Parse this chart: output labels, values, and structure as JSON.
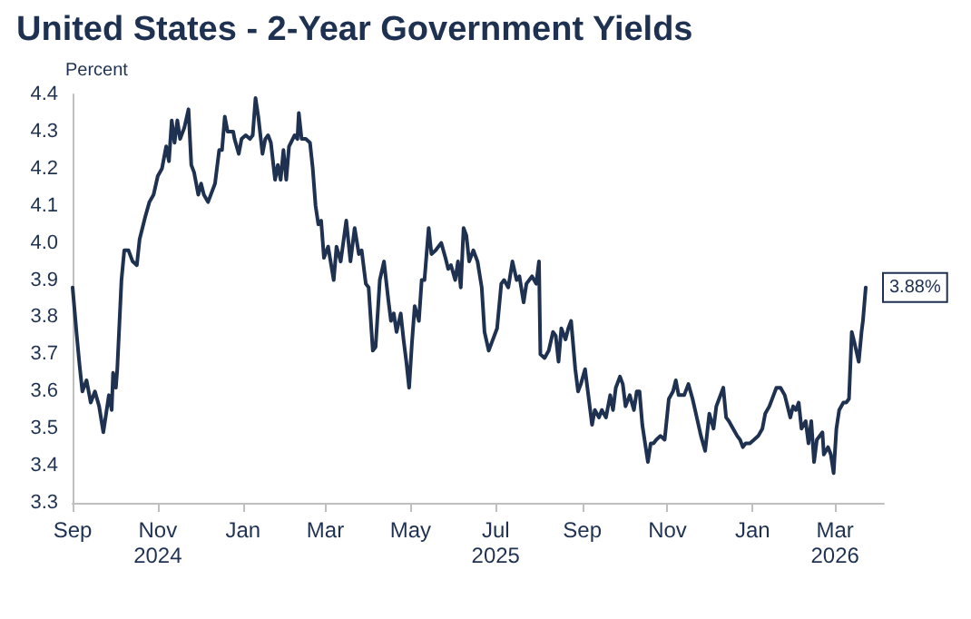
{
  "chart_data": {
    "type": "line",
    "title": "United States - 2-Year Government Yields",
    "ylabel": "Percent",
    "xlim": [
      "2024-09-01",
      "2026-04-05"
    ],
    "ylim": [
      3.3,
      4.4
    ],
    "xticks": [
      {
        "value": "2024-09-01",
        "label": "Sep"
      },
      {
        "value": "2024-11-01",
        "label": "Nov\n2024"
      },
      {
        "value": "2025-01-01",
        "label": "Jan"
      },
      {
        "value": "2025-03-01",
        "label": "Mar"
      },
      {
        "value": "2025-05-01",
        "label": "May"
      },
      {
        "value": "2025-07-01",
        "label": "Jul\n2025"
      },
      {
        "value": "2025-09-01",
        "label": "Sep"
      },
      {
        "value": "2025-11-01",
        "label": "Nov"
      },
      {
        "value": "2026-01-01",
        "label": "Jan"
      },
      {
        "value": "2026-03-01",
        "label": "Mar\n2026"
      }
    ],
    "yticks": [
      3.3,
      3.4,
      3.5,
      3.6,
      3.7,
      3.8,
      3.9,
      {
        "value": 4,
        "label": "4.0"
      },
      4.1,
      4.2,
      4.3,
      4.4
    ],
    "grid": false,
    "marker": "none",
    "line_style": "solid",
    "annotations": [
      {
        "text": "3.88%",
        "x": "2026-03-23",
        "y": 3.88
      }
    ],
    "series": [
      {
        "color": "#1f3150",
        "x": [
          "2024-09-01",
          "2024-09-04",
          "2024-09-06",
          "2024-09-08",
          "2024-09-11",
          "2024-09-14",
          "2024-09-17",
          "2024-09-20",
          "2024-09-23",
          "2024-09-27",
          "2024-09-29",
          "2024-09-30",
          "2024-10-02",
          "2024-10-03",
          "2024-10-06",
          "2024-10-08",
          "2024-10-11",
          "2024-10-14",
          "2024-10-17",
          "2024-10-19",
          "2024-10-23",
          "2024-10-26",
          "2024-10-29",
          "2024-11-01",
          "2024-11-04",
          "2024-11-07",
          "2024-11-09",
          "2024-11-11",
          "2024-11-13",
          "2024-11-15",
          "2024-11-17",
          "2024-11-20",
          "2024-11-23",
          "2024-11-25",
          "2024-11-27",
          "2024-11-30",
          "2024-12-02",
          "2024-12-04",
          "2024-12-07",
          "2024-12-10",
          "2024-12-12",
          "2024-12-15",
          "2024-12-17",
          "2024-12-19",
          "2024-12-21",
          "2024-12-25",
          "2024-12-26",
          "2024-12-29",
          "2024-12-31",
          "2025-01-03",
          "2025-01-06",
          "2025-01-08",
          "2025-01-10",
          "2025-01-12",
          "2025-01-15",
          "2025-01-17",
          "2025-01-19",
          "2025-01-21",
          "2025-01-24",
          "2025-01-26",
          "2025-01-28",
          "2025-01-30",
          "2025-02-01",
          "2025-02-03",
          "2025-02-07",
          "2025-02-09",
          "2025-02-10",
          "2025-02-12",
          "2025-02-15",
          "2025-02-18",
          "2025-02-20",
          "2025-02-22",
          "2025-02-24",
          "2025-02-26",
          "2025-02-28",
          "2025-03-03",
          "2025-03-07",
          "2025-03-09",
          "2025-03-12",
          "2025-03-16",
          "2025-03-19",
          "2025-03-22",
          "2025-03-25",
          "2025-03-27",
          "2025-03-30",
          "2025-04-01",
          "2025-04-04",
          "2025-04-06",
          "2025-04-09",
          "2025-04-12",
          "2025-04-15",
          "2025-04-17",
          "2025-04-19",
          "2025-04-21",
          "2025-04-24",
          "2025-04-26",
          "2025-04-28",
          "2025-04-30",
          "2025-05-02",
          "2025-05-04",
          "2025-05-07",
          "2025-05-09",
          "2025-05-11",
          "2025-05-14",
          "2025-05-16",
          "2025-05-19",
          "2025-05-23",
          "2025-05-26",
          "2025-05-28",
          "2025-05-30",
          "2025-06-02",
          "2025-06-04",
          "2025-06-06",
          "2025-06-08",
          "2025-06-10",
          "2025-06-12",
          "2025-06-15",
          "2025-06-18",
          "2025-06-21",
          "2025-06-23",
          "2025-06-26",
          "2025-06-28",
          "2025-07-02",
          "2025-07-05",
          "2025-07-07",
          "2025-07-10",
          "2025-07-13",
          "2025-07-16",
          "2025-07-18",
          "2025-07-21",
          "2025-07-23",
          "2025-07-27",
          "2025-07-30",
          "2025-08-01",
          "2025-08-02",
          "2025-08-05",
          "2025-08-08",
          "2025-08-11",
          "2025-08-13",
          "2025-08-15",
          "2025-08-17",
          "2025-08-20",
          "2025-08-22",
          "2025-08-24",
          "2025-08-27",
          "2025-08-29",
          "2025-08-31",
          "2025-09-03",
          "2025-09-05",
          "2025-09-08",
          "2025-09-10",
          "2025-09-13",
          "2025-09-15",
          "2025-09-18",
          "2025-09-21",
          "2025-09-23",
          "2025-09-25",
          "2025-09-28",
          "2025-09-30",
          "2025-10-02",
          "2025-10-05",
          "2025-10-08",
          "2025-10-10",
          "2025-10-12",
          "2025-10-14",
          "2025-10-18",
          "2025-10-20",
          "2025-10-22",
          "2025-10-24",
          "2025-10-27",
          "2025-10-30",
          "2025-11-02",
          "2025-11-05",
          "2025-11-07",
          "2025-11-09",
          "2025-11-13",
          "2025-11-16",
          "2025-11-19",
          "2025-11-22",
          "2025-11-25",
          "2025-11-28",
          "2025-12-01",
          "2025-12-04",
          "2025-12-06",
          "2025-12-08",
          "2025-12-11",
          "2025-12-13",
          "2025-12-15",
          "2025-12-18",
          "2025-12-21",
          "2025-12-23",
          "2025-12-25",
          "2025-12-27",
          "2025-12-30",
          "2026-01-02",
          "2026-01-05",
          "2026-01-08",
          "2026-01-10",
          "2026-01-13",
          "2026-01-16",
          "2026-01-18",
          "2026-01-21",
          "2026-01-24",
          "2026-01-26",
          "2026-01-28",
          "2026-01-30",
          "2026-02-01",
          "2026-02-03",
          "2026-02-05",
          "2026-02-08",
          "2026-02-10",
          "2026-02-12",
          "2026-02-14",
          "2026-02-16",
          "2026-02-20",
          "2026-02-21",
          "2026-02-24",
          "2026-02-26",
          "2026-02-28",
          "2026-03-02",
          "2026-03-04",
          "2026-03-07",
          "2026-03-09",
          "2026-03-11",
          "2026-03-13",
          "2026-03-15",
          "2026-03-18",
          "2026-03-20",
          "2026-03-21",
          "2026-03-23"
        ],
        "values": [
          3.88,
          3.75,
          3.67,
          3.6,
          3.63,
          3.57,
          3.6,
          3.56,
          3.49,
          3.59,
          3.55,
          3.65,
          3.61,
          3.66,
          3.9,
          3.98,
          3.98,
          3.95,
          3.94,
          4.01,
          4.07,
          4.11,
          4.13,
          4.18,
          4.2,
          4.26,
          4.22,
          4.33,
          4.27,
          4.33,
          4.28,
          4.31,
          4.36,
          4.21,
          4.19,
          4.13,
          4.16,
          4.13,
          4.11,
          4.14,
          4.16,
          4.25,
          4.25,
          4.34,
          4.3,
          4.3,
          4.28,
          4.24,
          4.28,
          4.29,
          4.28,
          4.29,
          4.39,
          4.34,
          4.24,
          4.28,
          4.29,
          4.27,
          4.17,
          4.21,
          4.17,
          4.25,
          4.17,
          4.26,
          4.29,
          4.28,
          4.35,
          4.28,
          4.28,
          4.27,
          4.2,
          4.1,
          4.05,
          4.06,
          3.96,
          3.99,
          3.9,
          3.99,
          3.95,
          4.06,
          3.95,
          4.04,
          3.97,
          3.98,
          3.89,
          3.88,
          3.71,
          3.72,
          3.9,
          3.95,
          3.85,
          3.79,
          3.81,
          3.76,
          3.81,
          3.74,
          3.68,
          3.61,
          3.73,
          3.83,
          3.79,
          3.9,
          3.9,
          4.04,
          3.97,
          3.98,
          4.0,
          3.96,
          3.93,
          3.94,
          3.9,
          3.95,
          3.88,
          4.04,
          4.02,
          3.95,
          3.98,
          3.95,
          3.88,
          3.76,
          3.71,
          3.73,
          3.77,
          3.89,
          3.9,
          3.88,
          3.95,
          3.9,
          3.91,
          3.84,
          3.89,
          3.91,
          3.89,
          3.95,
          3.7,
          3.69,
          3.71,
          3.76,
          3.75,
          3.68,
          3.77,
          3.74,
          3.77,
          3.79,
          3.66,
          3.6,
          3.62,
          3.66,
          3.6,
          3.51,
          3.55,
          3.53,
          3.55,
          3.53,
          3.59,
          3.55,
          3.61,
          3.64,
          3.62,
          3.56,
          3.59,
          3.55,
          3.6,
          3.6,
          3.51,
          3.41,
          3.46,
          3.46,
          3.47,
          3.48,
          3.47,
          3.58,
          3.6,
          3.63,
          3.59,
          3.59,
          3.62,
          3.58,
          3.53,
          3.48,
          3.44,
          3.54,
          3.5,
          3.56,
          3.58,
          3.61,
          3.53,
          3.52,
          3.5,
          3.48,
          3.47,
          3.45,
          3.46,
          3.46,
          3.47,
          3.48,
          3.5,
          3.54,
          3.56,
          3.59,
          3.61,
          3.61,
          3.59,
          3.56,
          3.53,
          3.56,
          3.55,
          3.57,
          3.5,
          3.52,
          3.46,
          3.52,
          3.41,
          3.47,
          3.49,
          3.43,
          3.45,
          3.43,
          3.38,
          3.5,
          3.55,
          3.57,
          3.57,
          3.58,
          3.76,
          3.73,
          3.68,
          3.76,
          3.79,
          3.88
        ]
      }
    ]
  }
}
